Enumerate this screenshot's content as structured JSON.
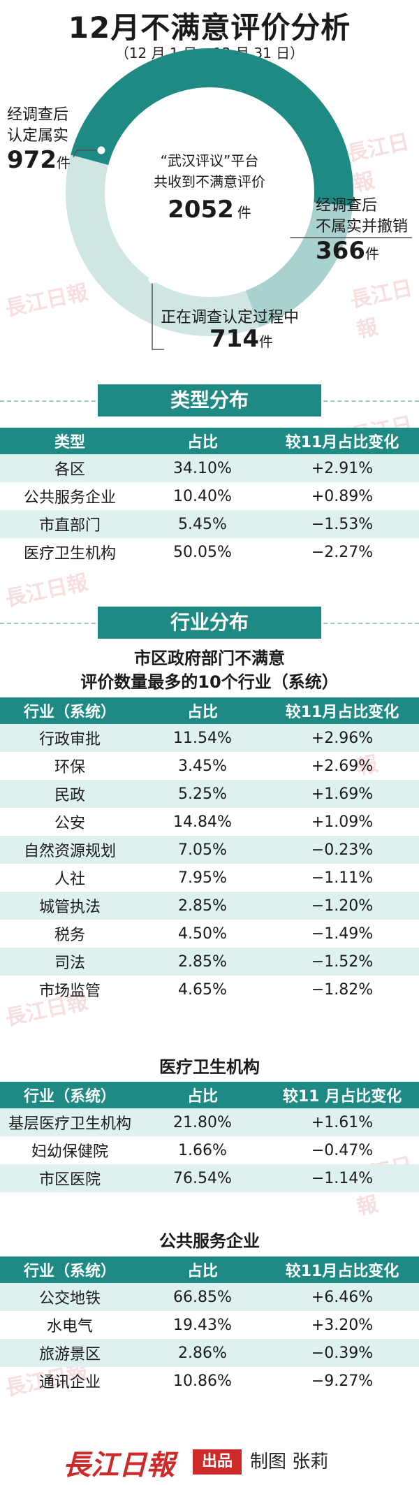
{
  "header": {
    "title": "12月不满意评价分析",
    "subtitle": "（12 月 1 日 ~12 月 31 日）"
  },
  "chart_data": [
    {
      "type": "pie",
      "variant": "donut",
      "center": {
        "line1": "“武汉评议”平台",
        "line2": "共收到不满意评价",
        "total": "2052",
        "unit": "件"
      },
      "slices": [
        {
          "label_line1": "经调查后",
          "label_line2": "认定属实",
          "value": 972,
          "unit": "件",
          "color": "#1e8a83"
        },
        {
          "label_line1": "经调查后",
          "label_line2": "不属实并撤销",
          "value": 366,
          "unit": "件",
          "color": "#a9d1ce"
        },
        {
          "label_line1": "正在调查认定过程中",
          "label_line2": "",
          "value": 714,
          "unit": "件",
          "color": "#cfe6e3"
        }
      ],
      "legend": "none"
    },
    {
      "type": "table",
      "section": "类型分布",
      "caption": "",
      "columns": [
        "类型",
        "占比",
        "较11月占比变化"
      ],
      "rows": [
        [
          "各区",
          "34.10%",
          "+2.91%"
        ],
        [
          "公共服务企业",
          "10.40%",
          "+0.89%"
        ],
        [
          "市直部门",
          "5.45%",
          "−1.53%"
        ],
        [
          "医疗卫生机构",
          "50.05%",
          "−2.27%"
        ]
      ]
    },
    {
      "type": "table",
      "section": "行业分布",
      "caption_line1": "市区政府部门不满意",
      "caption_line2": "评价数量最多的10个行业（系统）",
      "columns": [
        "行业（系统）",
        "占比",
        "较11月占比变化"
      ],
      "rows": [
        [
          "行政审批",
          "11.54%",
          "+2.96%"
        ],
        [
          "环保",
          "3.45%",
          "+2.69%"
        ],
        [
          "民政",
          "5.25%",
          "+1.69%"
        ],
        [
          "公安",
          "14.84%",
          "+1.09%"
        ],
        [
          "自然资源规划",
          "7.05%",
          "−0.23%"
        ],
        [
          "人社",
          "7.95%",
          "−1.11%"
        ],
        [
          "城管执法",
          "2.85%",
          "−1.20%"
        ],
        [
          "税务",
          "4.50%",
          "−1.49%"
        ],
        [
          "司法",
          "2.85%",
          "−1.52%"
        ],
        [
          "市场监管",
          "4.65%",
          "−1.82%"
        ]
      ]
    },
    {
      "type": "table",
      "caption": "医疗卫生机构",
      "columns": [
        "行业（系统）",
        "占比",
        "较11 月占比变化"
      ],
      "rows": [
        [
          "基层医疗卫生机构",
          "21.80%",
          "+1.61%"
        ],
        [
          "妇幼保健院",
          "1.66%",
          "−0.47%"
        ],
        [
          "市区医院",
          "76.54%",
          "−1.14%"
        ]
      ]
    },
    {
      "type": "table",
      "caption": "公共服务企业",
      "columns": [
        "行业（系统）",
        "占比",
        "较11月占比变化"
      ],
      "rows": [
        [
          "公交地铁",
          "66.85%",
          "+6.46%"
        ],
        [
          "水电气",
          "19.43%",
          "+3.20%"
        ],
        [
          "旅游景区",
          "2.86%",
          "−0.39%"
        ],
        [
          "通讯企业",
          "10.86%",
          "−9.27%"
        ]
      ]
    }
  ],
  "watermark": "長江日報",
  "footer": {
    "logo": "長江日報",
    "badge": "出品",
    "credit": "制图 张莉"
  }
}
